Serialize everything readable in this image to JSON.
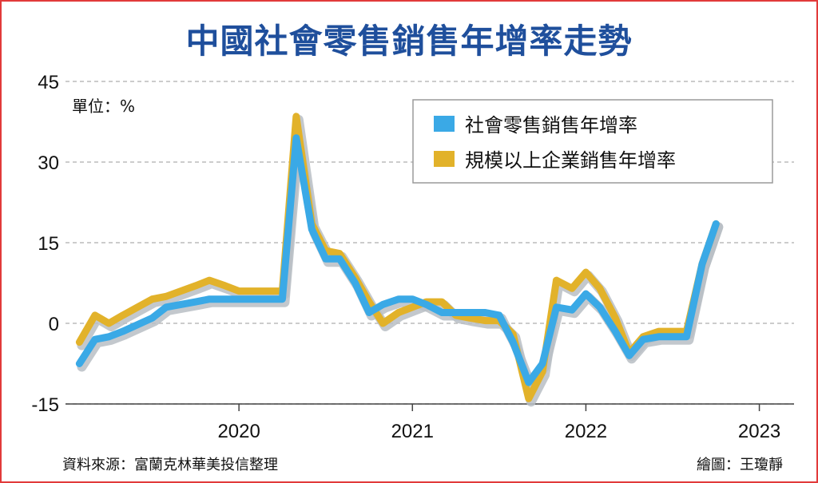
{
  "title": "中國社會零售銷售年增率走勢",
  "source": "資料來源：富蘭克林華美投信整理",
  "credit": "繪圖：王瓊靜",
  "chart_data": {
    "type": "line",
    "unit_label": "單位：%",
    "ylim": [
      -15,
      45
    ],
    "yticks": [
      -15,
      0,
      15,
      30,
      45
    ],
    "ytick_labels": [
      "-15",
      "0",
      "15",
      "30",
      "45"
    ],
    "xlim": [
      2019.0,
      2023.2
    ],
    "xticks": [
      2020,
      2021,
      2022,
      2023
    ],
    "xtick_labels": [
      "2020",
      "2021",
      "2022",
      "2023"
    ],
    "grid": true,
    "legend": "top-right",
    "colors": {
      "retail": "#3aa9e6",
      "enterprise": "#e2b22a",
      "shadow": "#b9bec4",
      "grid": "#bbbbbb"
    },
    "series": [
      {
        "name": "規模以上企業銷售年增率",
        "color": "#e2b22a",
        "points": [
          [
            2019.08,
            -3.5
          ],
          [
            2019.17,
            1.5
          ],
          [
            2019.25,
            0.0
          ],
          [
            2019.33,
            1.5
          ],
          [
            2019.5,
            4.5
          ],
          [
            2019.58,
            5.0
          ],
          [
            2019.75,
            7.0
          ],
          [
            2019.83,
            8.0
          ],
          [
            2019.92,
            7.0
          ],
          [
            2020.0,
            6.0
          ],
          [
            2020.08,
            6.0
          ],
          [
            2020.17,
            6.0
          ],
          [
            2020.25,
            6.0
          ],
          [
            2020.33,
            38.5
          ],
          [
            2020.42,
            18.5
          ],
          [
            2020.5,
            13.5
          ],
          [
            2020.58,
            13.0
          ],
          [
            2020.67,
            8.5
          ],
          [
            2020.75,
            4.0
          ],
          [
            2020.83,
            0.0
          ],
          [
            2020.92,
            2.0
          ],
          [
            2021.0,
            3.0
          ],
          [
            2021.08,
            4.0
          ],
          [
            2021.17,
            4.0
          ],
          [
            2021.25,
            1.5
          ],
          [
            2021.33,
            1.0
          ],
          [
            2021.42,
            0.5
          ],
          [
            2021.5,
            0.5
          ],
          [
            2021.58,
            -2.0
          ],
          [
            2021.67,
            -14.0
          ],
          [
            2021.75,
            -9.0
          ],
          [
            2021.83,
            8.0
          ],
          [
            2021.92,
            6.5
          ],
          [
            2022.0,
            9.5
          ],
          [
            2022.08,
            6.5
          ],
          [
            2022.17,
            1.0
          ],
          [
            2022.25,
            -5.5
          ],
          [
            2022.33,
            -2.5
          ],
          [
            2022.42,
            -1.5
          ],
          [
            2022.5,
            -1.5
          ],
          [
            2022.58,
            -1.5
          ],
          [
            2022.67,
            11.0
          ],
          [
            2022.75,
            18.5
          ]
        ]
      },
      {
        "name": "社會零售銷售年增率",
        "color": "#3aa9e6",
        "points": [
          [
            2019.08,
            -7.5
          ],
          [
            2019.17,
            -3.0
          ],
          [
            2019.25,
            -2.5
          ],
          [
            2019.33,
            -1.5
          ],
          [
            2019.5,
            1.0
          ],
          [
            2019.58,
            3.0
          ],
          [
            2019.75,
            4.0
          ],
          [
            2019.83,
            4.5
          ],
          [
            2019.92,
            4.5
          ],
          [
            2020.0,
            4.5
          ],
          [
            2020.08,
            4.5
          ],
          [
            2020.17,
            4.5
          ],
          [
            2020.25,
            4.5
          ],
          [
            2020.33,
            34.5
          ],
          [
            2020.42,
            17.5
          ],
          [
            2020.5,
            12.0
          ],
          [
            2020.58,
            12.0
          ],
          [
            2020.67,
            7.5
          ],
          [
            2020.75,
            2.0
          ],
          [
            2020.83,
            3.5
          ],
          [
            2020.92,
            4.5
          ],
          [
            2021.0,
            4.5
          ],
          [
            2021.08,
            3.5
          ],
          [
            2021.17,
            2.0
          ],
          [
            2021.25,
            2.0
          ],
          [
            2021.33,
            2.0
          ],
          [
            2021.42,
            2.0
          ],
          [
            2021.5,
            1.5
          ],
          [
            2021.58,
            -3.5
          ],
          [
            2021.67,
            -11.0
          ],
          [
            2021.75,
            -7.5
          ],
          [
            2021.83,
            3.0
          ],
          [
            2021.92,
            2.5
          ],
          [
            2022.0,
            5.5
          ],
          [
            2022.08,
            3.0
          ],
          [
            2022.17,
            -1.5
          ],
          [
            2022.25,
            -6.0
          ],
          [
            2022.33,
            -3.0
          ],
          [
            2022.42,
            -2.5
          ],
          [
            2022.5,
            -2.5
          ],
          [
            2022.58,
            -2.5
          ],
          [
            2022.67,
            11.0
          ],
          [
            2022.75,
            18.5
          ]
        ]
      }
    ]
  }
}
